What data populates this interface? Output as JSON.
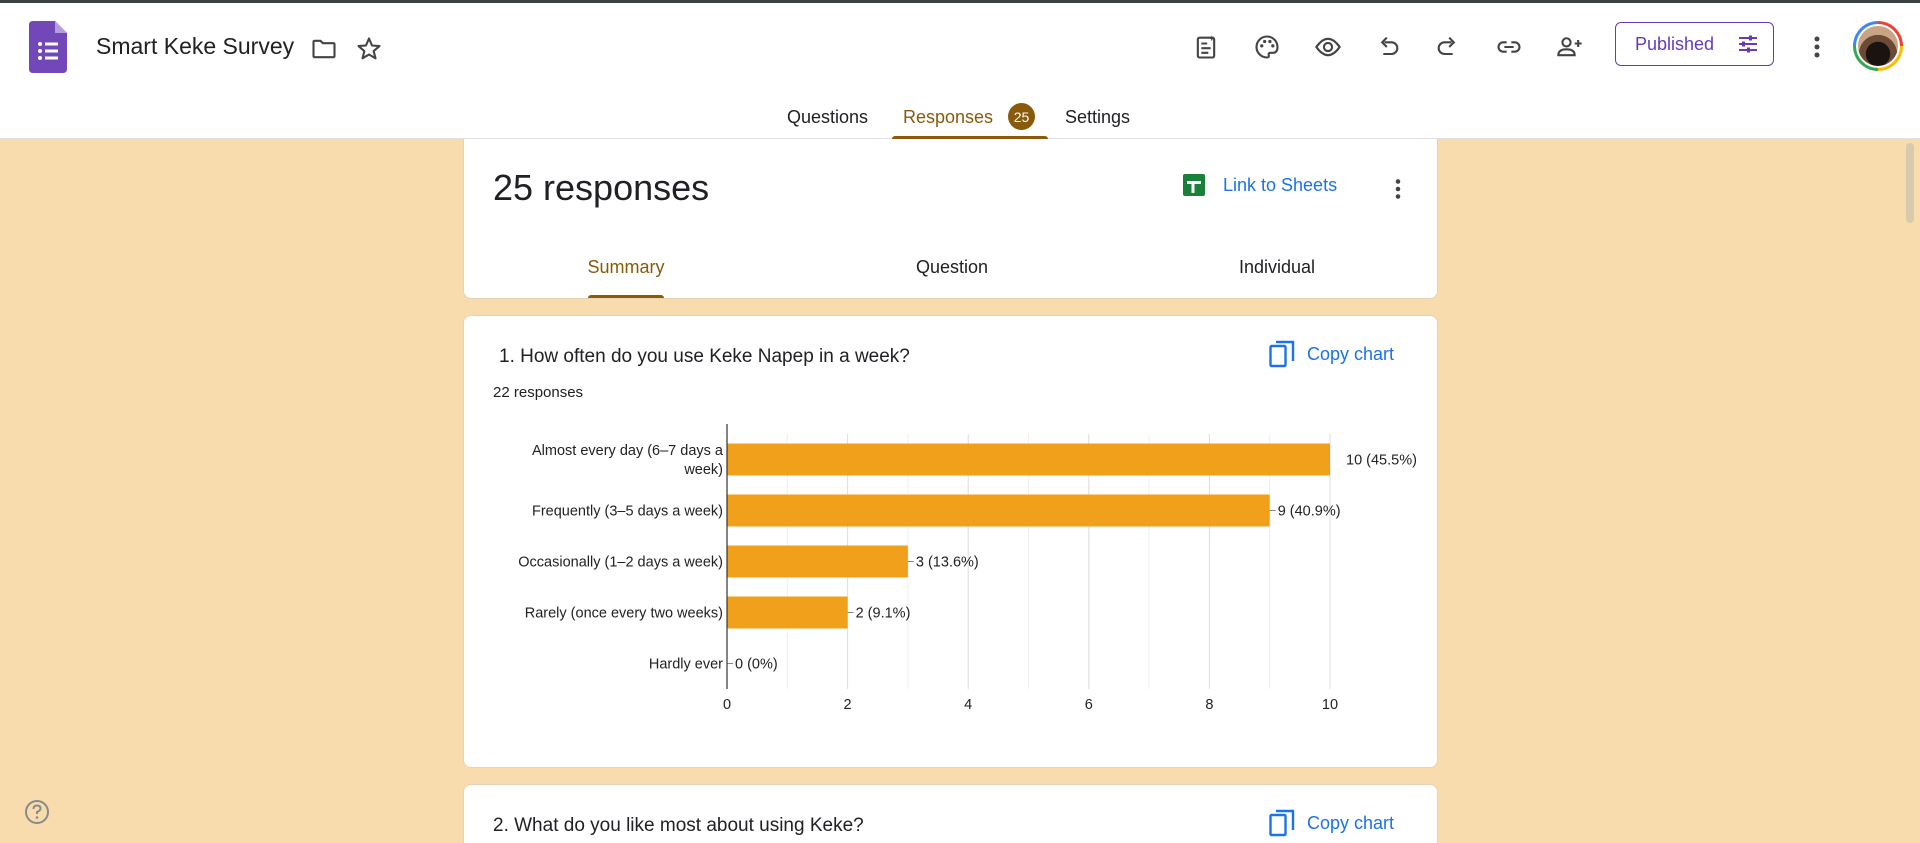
{
  "app": {
    "title": "Smart Keke Survey"
  },
  "toolbar": {
    "icons": [
      "add-ons-icon",
      "palette-icon",
      "preview-eye-icon",
      "undo-icon",
      "redo-icon",
      "link-icon",
      "add-collaborator-icon",
      "more-vert-icon"
    ],
    "publish_label": "Published"
  },
  "tabs": {
    "questions": "Questions",
    "responses": "Responses",
    "responses_count": "25",
    "settings": "Settings"
  },
  "summary_card": {
    "title": "25 responses",
    "link_label": "Link to Sheets",
    "subtabs": {
      "summary": "Summary",
      "question": "Question",
      "individual": "Individual"
    }
  },
  "question1": {
    "title": "1.  How often do you use Keke Napep in a week?",
    "copy_label": "Copy chart",
    "response_count": "22 responses"
  },
  "question2": {
    "title": "2.  What do you like most about using Keke?",
    "copy_label": "Copy chart"
  },
  "chart_data": {
    "type": "bar",
    "orientation": "horizontal",
    "categories": [
      [
        "Almost every day (6–7 days a",
        "week)"
      ],
      [
        "Frequently (3–5 days a week)"
      ],
      [
        "Occasionally (1–2 days a week)"
      ],
      [
        "Rarely (once every two weeks)"
      ],
      [
        "Hardly ever"
      ]
    ],
    "values": [
      10,
      9,
      3,
      2,
      0
    ],
    "data_labels": [
      "10 (45.5%)",
      "9 (40.9%)",
      "3 (13.6%)",
      "2 (9.1%)",
      "0 (0%)"
    ],
    "xlim": [
      0,
      10
    ],
    "xticks": [
      0,
      2,
      4,
      6,
      8,
      10
    ],
    "grid": true,
    "bar_color": "#f0a01a"
  },
  "colors": {
    "accent": "#8a5a0b",
    "brand_purple": "#673ab7",
    "link_blue": "#1a73e8",
    "background": "#f8dcad"
  }
}
